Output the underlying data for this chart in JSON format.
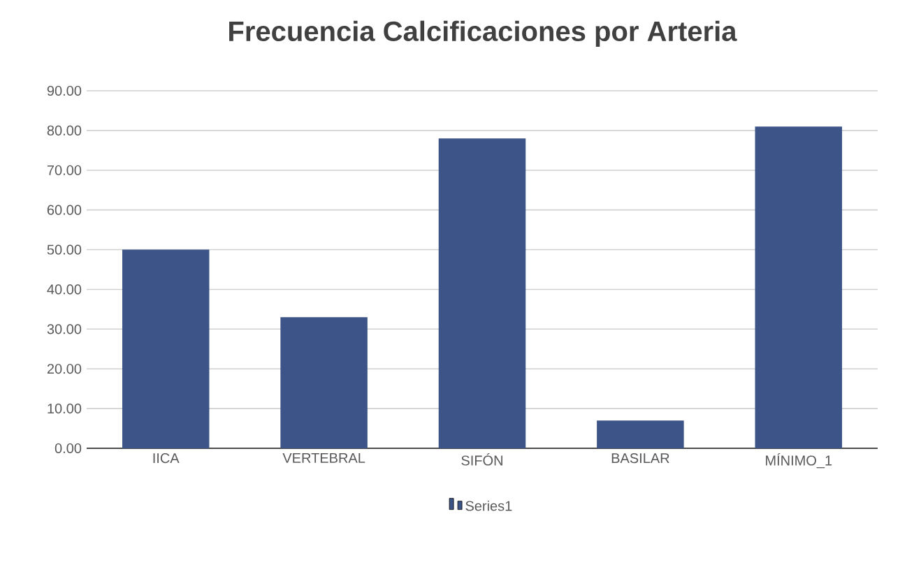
{
  "chart_data": {
    "type": "bar",
    "title": "Frecuencia Calcificaciones por Arteria",
    "categories": [
      "IICA",
      "VERTEBRAL",
      "SIFÓN",
      "BASILAR",
      "MÍNIMO_1"
    ],
    "series": [
      {
        "name": "Series1",
        "color": "#3c5488",
        "values": [
          50,
          33,
          78,
          7,
          81
        ]
      }
    ],
    "ylim": [
      0,
      90
    ],
    "yticks": [
      {
        "value": 0,
        "label": "0.00"
      },
      {
        "value": 10,
        "label": "10.00"
      },
      {
        "value": 20,
        "label": "20.00"
      },
      {
        "value": 30,
        "label": "30.00"
      },
      {
        "value": 40,
        "label": "40.00"
      },
      {
        "value": 50,
        "label": "50.00"
      },
      {
        "value": 60,
        "label": "60.00"
      },
      {
        "value": 70,
        "label": "70.00"
      },
      {
        "value": 80,
        "label": "80.00"
      },
      {
        "value": 90,
        "label": "90.00"
      }
    ],
    "grid": "y",
    "legend": "bottom"
  }
}
